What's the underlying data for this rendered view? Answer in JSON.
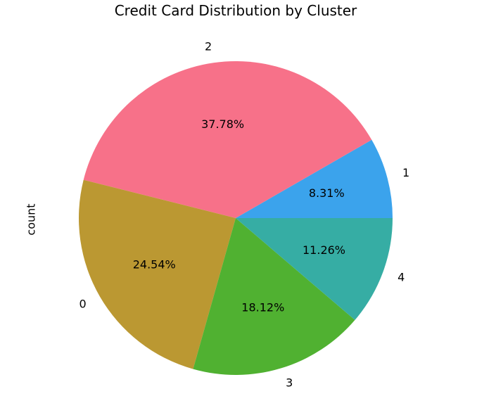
{
  "chart_data": {
    "type": "pie",
    "title": "Credit Card Distribution by Cluster",
    "ylabel": "count",
    "start_angle_deg": 0,
    "direction": "counterclockwise",
    "slices": [
      {
        "label": "1",
        "percent": 8.31,
        "percent_label": "8.31%",
        "color": "#3BA3EC"
      },
      {
        "label": "2",
        "percent": 37.78,
        "percent_label": "37.78%",
        "color": "#F77189"
      },
      {
        "label": "0",
        "percent": 24.54,
        "percent_label": "24.54%",
        "color": "#BB9832"
      },
      {
        "label": "3",
        "percent": 18.12,
        "percent_label": "18.12%",
        "color": "#50B131"
      },
      {
        "label": "4",
        "percent": 11.26,
        "percent_label": "11.26%",
        "color": "#36ADA4"
      }
    ]
  }
}
